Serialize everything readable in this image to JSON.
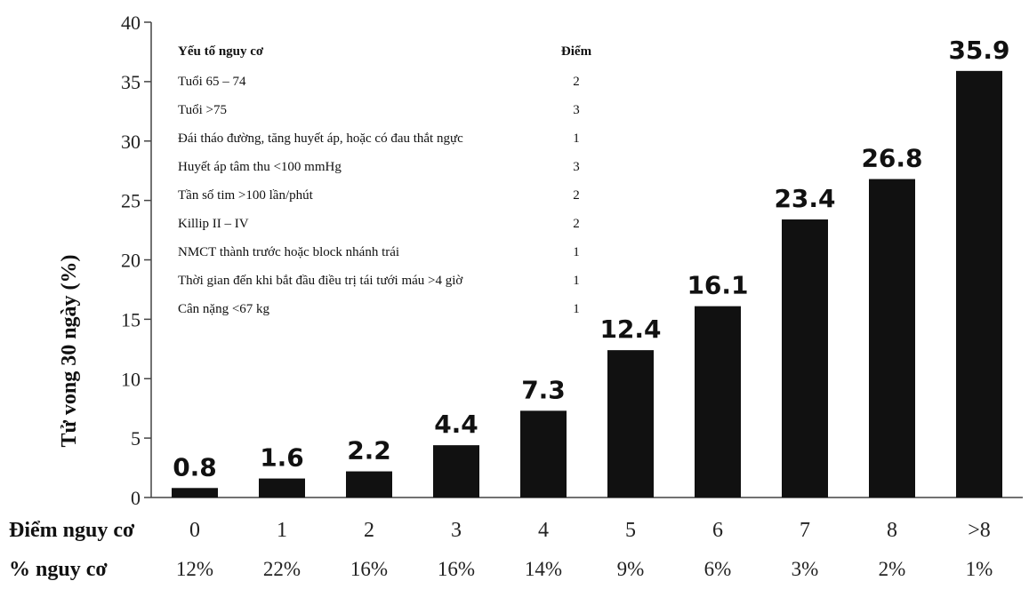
{
  "chart_data": {
    "type": "bar",
    "ylabel": "Tử vong 30 ngày (%)",
    "ylim": [
      0,
      40
    ],
    "yticks": [
      0,
      5,
      10,
      15,
      20,
      25,
      30,
      35,
      40
    ],
    "grid": false,
    "bar_color": "#111111",
    "categories": [
      "0",
      "1",
      "2",
      "3",
      "4",
      "5",
      "6",
      "7",
      "8",
      ">8"
    ],
    "values": [
      0.8,
      1.6,
      2.2,
      4.4,
      7.3,
      12.4,
      16.1,
      23.4,
      26.8,
      35.9
    ],
    "data_labels": [
      "0.8",
      "1.6",
      "2.2",
      "4.4",
      "7.3",
      "12.4",
      "16.1",
      "23.4",
      "26.8",
      "35.9"
    ],
    "category_row_title": "Điểm nguy cơ",
    "percent_row_title": "% nguy cơ",
    "percent_risk": [
      "12%",
      "22%",
      "16%",
      "16%",
      "14%",
      "9%",
      "6%",
      "3%",
      "2%",
      "1%"
    ],
    "risk_table": {
      "header_factor": "Yếu tố nguy cơ",
      "header_points": "Điểm",
      "rows": [
        {
          "factor": "Tuổi 65 – 74",
          "points": "2"
        },
        {
          "factor": "Tuổi >75",
          "points": "3"
        },
        {
          "factor": "Đái tháo đường, tăng huyết áp, hoặc có đau thắt ngực",
          "points": "1"
        },
        {
          "factor": "Huyết áp tâm thu <100 mmHg",
          "points": "3"
        },
        {
          "factor": "Tần số tim >100 lần/phút",
          "points": "2"
        },
        {
          "factor": "Killip II – IV",
          "points": "2"
        },
        {
          "factor": "NMCT thành trước hoặc block nhánh trái",
          "points": "1"
        },
        {
          "factor": "Thời gian đến khi bắt đầu điều trị tái tưới máu >4 giờ",
          "points": "1"
        },
        {
          "factor": "Cân nặng <67 kg",
          "points": "1"
        }
      ]
    }
  }
}
